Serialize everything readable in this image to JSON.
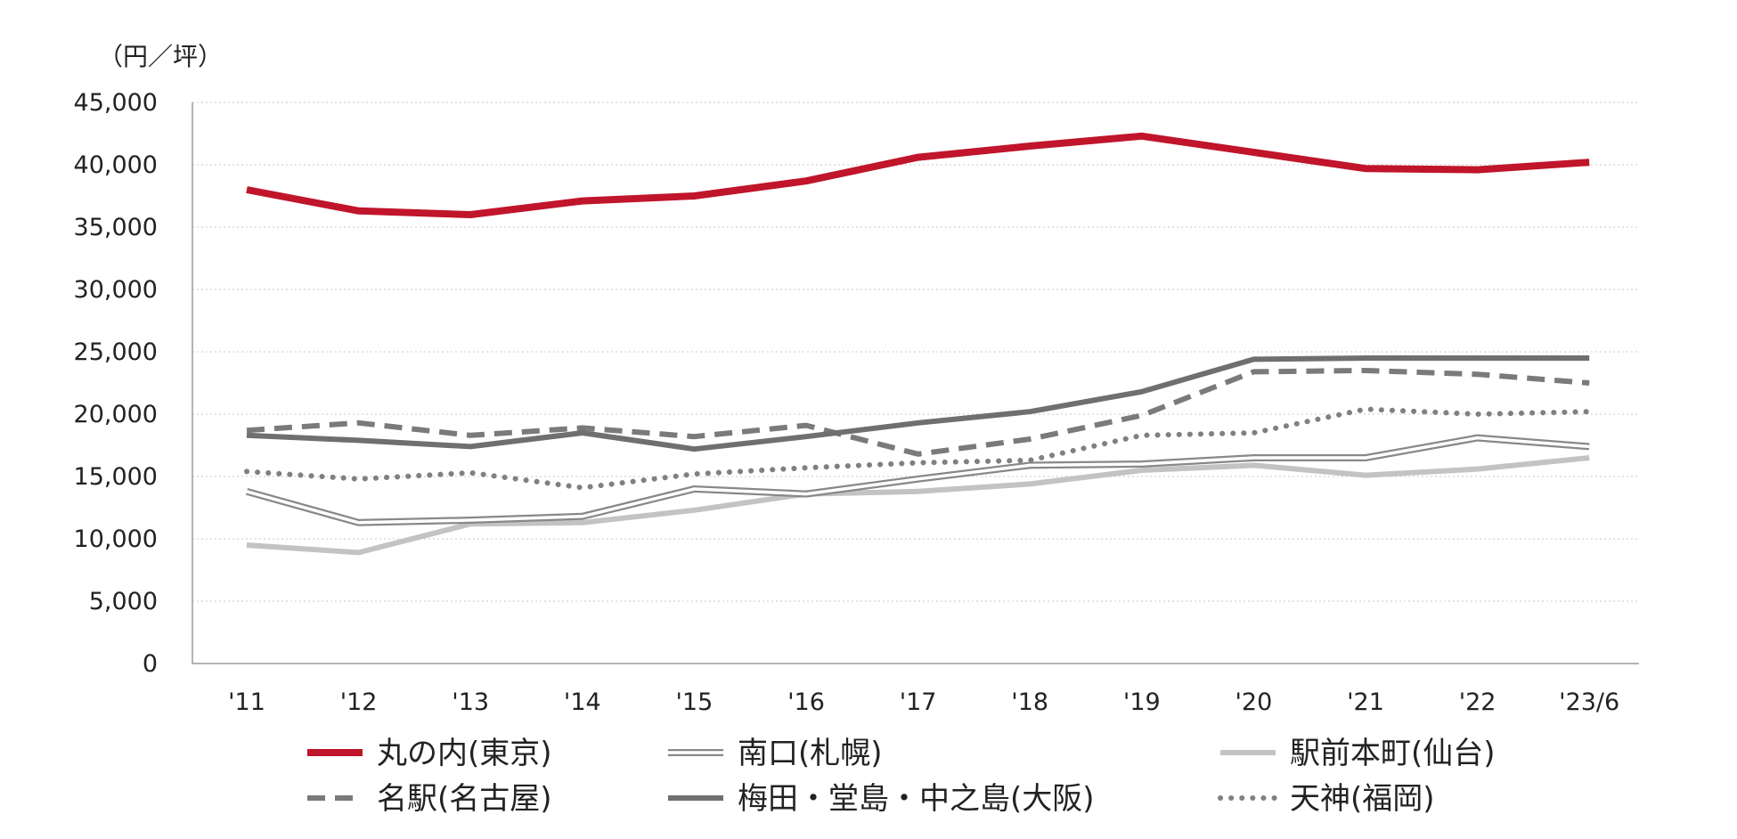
{
  "chart_data": {
    "type": "line",
    "unit_label": "（円／坪）",
    "categories": [
      "'11",
      "'12",
      "'13",
      "'14",
      "'15",
      "'16",
      "'17",
      "'18",
      "'19",
      "'20",
      "'21",
      "'22",
      "'23/6"
    ],
    "ylim": [
      0,
      45000
    ],
    "y_ticks": [
      0,
      5000,
      10000,
      15000,
      20000,
      25000,
      30000,
      35000,
      40000,
      45000
    ],
    "y_tick_labels": [
      "0",
      "5,000",
      "10,000",
      "15,000",
      "20,000",
      "25,000",
      "30,000",
      "35,000",
      "40,000",
      "45,000"
    ],
    "grid": "horizontal-dotted",
    "legend_position": "bottom",
    "series": [
      {
        "name": "丸の内(東京)",
        "style": "solid-thick",
        "color": "#c0152a",
        "values": [
          38000,
          36300,
          36000,
          37100,
          37500,
          38700,
          40600,
          41500,
          42300,
          41000,
          39700,
          39600,
          40200
        ]
      },
      {
        "name": "南口(札幌)",
        "style": "double-line",
        "color": "#888888",
        "values": [
          13800,
          11300,
          11500,
          11800,
          14000,
          13600,
          14800,
          15900,
          16000,
          16500,
          16500,
          18100,
          17400
        ]
      },
      {
        "name": "駅前本町(仙台)",
        "style": "solid-light",
        "color": "#c3c3c3",
        "values": [
          9500,
          8900,
          11200,
          11300,
          12300,
          13600,
          13800,
          14400,
          15500,
          15900,
          15100,
          15600,
          16500
        ]
      },
      {
        "name": "名駅(名古屋)",
        "style": "dashed",
        "color": "#7a7a7a",
        "values": [
          18700,
          19300,
          18300,
          18900,
          18200,
          19100,
          16800,
          18000,
          19900,
          23400,
          23500,
          23200,
          22500
        ]
      },
      {
        "name": "梅田・堂島・中之島(大阪)",
        "style": "solid-dark",
        "color": "#6f6f6f",
        "values": [
          18300,
          17900,
          17400,
          18500,
          17200,
          18200,
          19300,
          20200,
          21800,
          24400,
          24500,
          24500,
          24500
        ]
      },
      {
        "name": "天神(福岡)",
        "style": "dotted",
        "color": "#808080",
        "values": [
          15400,
          14800,
          15300,
          14100,
          15200,
          15700,
          16100,
          16300,
          18300,
          18500,
          20400,
          20000,
          20200
        ]
      }
    ]
  }
}
